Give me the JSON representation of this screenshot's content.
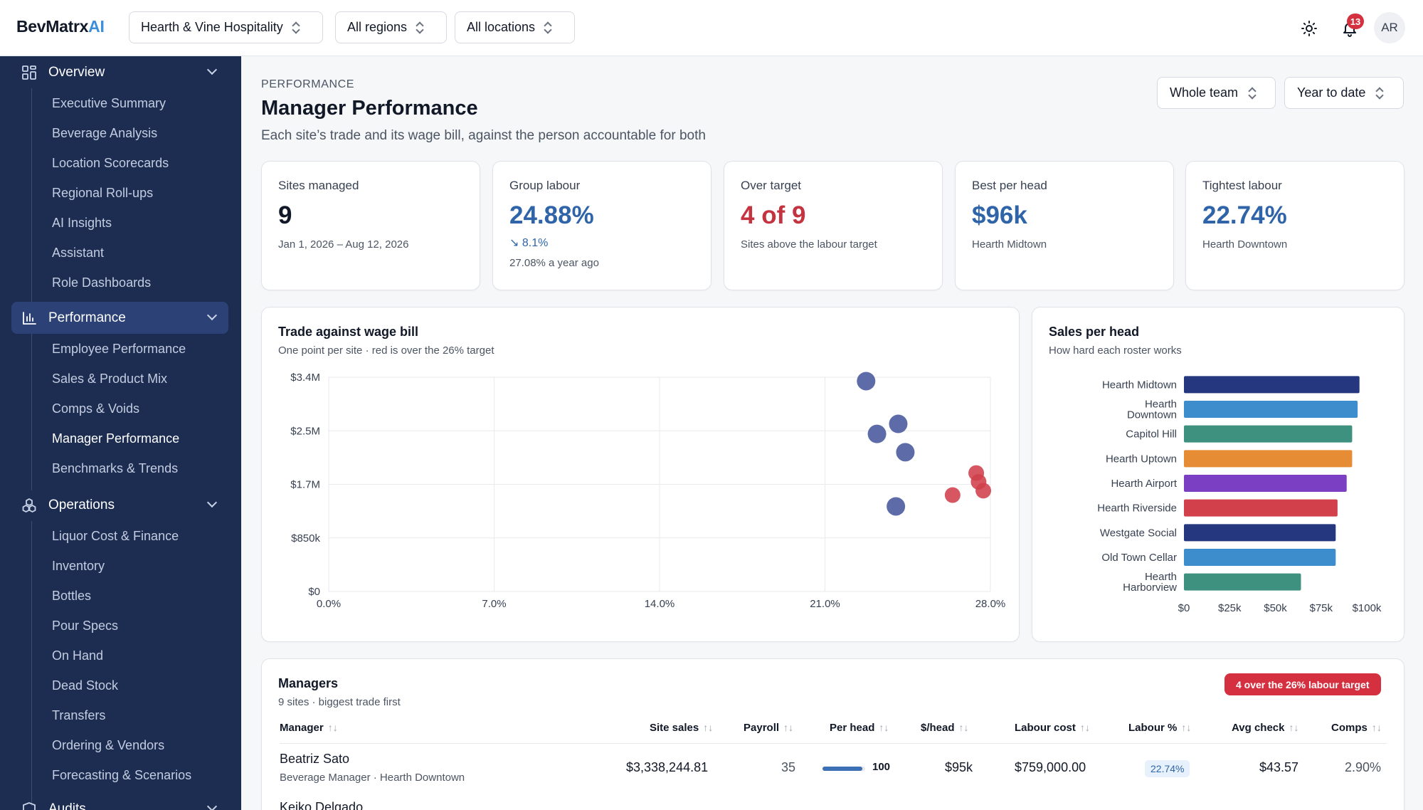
{
  "brand": {
    "main": "BevMatrx",
    "accent": "AI"
  },
  "topbar": {
    "org_select": "Hearth & Vine Hospitality",
    "region_select": "All regions",
    "location_select": "All locations",
    "notifications_count": "13",
    "avatar_initials": "AR"
  },
  "sidebar": {
    "overview": {
      "label": "Overview",
      "items": [
        "Executive Summary",
        "Beverage Analysis",
        "Location Scorecards",
        "Regional Roll-ups",
        "AI Insights",
        "Assistant",
        "Role Dashboards"
      ]
    },
    "performance": {
      "label": "Performance",
      "items": [
        "Employee Performance",
        "Sales & Product Mix",
        "Comps & Voids",
        "Manager Performance",
        "Benchmarks & Trends"
      ]
    },
    "operations": {
      "label": "Operations",
      "items": [
        "Liquor Cost & Finance",
        "Inventory",
        "Bottles",
        "Pour Specs",
        "On Hand",
        "Dead Stock",
        "Transfers",
        "Ordering & Vendors",
        "Forecasting & Scenarios"
      ]
    },
    "audits": {
      "label": "Audits"
    }
  },
  "page": {
    "eyebrow": "PERFORMANCE",
    "title": "Manager Performance",
    "subtitle": "Each site’s trade and its wage bill, against the person accountable for both",
    "team_select": "Whole team",
    "period_select": "Year to date"
  },
  "kpis": [
    {
      "label": "Sites managed",
      "value": "9",
      "foot": "Jan 1, 2026 – Aug 12, 2026"
    },
    {
      "label": "Group labour",
      "value": "24.88%",
      "trend": "8.1%",
      "foot": "27.08% a year ago"
    },
    {
      "label": "Over target",
      "value": "4 of 9",
      "foot": "Sites above the labour target"
    },
    {
      "label": "Best per head",
      "value": "$96k",
      "foot": "Hearth Midtown"
    },
    {
      "label": "Tightest labour",
      "value": "22.74%",
      "foot": "Hearth Downtown"
    }
  ],
  "colors": {
    "blue_value": "#2f64a8",
    "red_value": "#c33340",
    "dot_blue": "#47589c",
    "dot_red": "#d0404c"
  },
  "chart_data": [
    {
      "type": "scatter",
      "title": "Trade against wage bill",
      "subtitle": "One point per site · red is over the 26% target",
      "x_ticks": [
        "0.0%",
        "7.0%",
        "14.0%",
        "21.0%",
        "28.0%"
      ],
      "y_ticks": [
        "$0",
        "$850k",
        "$1.7M",
        "$2.5M",
        "$3.4M"
      ],
      "xlim": [
        0,
        28
      ],
      "ylim": [
        0,
        3400000
      ],
      "target": 26,
      "points": [
        {
          "x": 22.74,
          "y": 3338245
        },
        {
          "x": 24.1,
          "y": 2660000
        },
        {
          "x": 23.2,
          "y": 2500000
        },
        {
          "x": 24.4,
          "y": 2210000
        },
        {
          "x": 24.0,
          "y": 1350000
        },
        {
          "x": 27.4,
          "y": 1880000
        },
        {
          "x": 27.5,
          "y": 1740000
        },
        {
          "x": 26.4,
          "y": 1530000
        },
        {
          "x": 27.7,
          "y": 1600000
        }
      ]
    },
    {
      "type": "bar",
      "orientation": "horizontal",
      "title": "Sales per head",
      "subtitle": "How hard each roster works",
      "categories": [
        [
          "Hearth Midtown"
        ],
        [
          "Hearth",
          "Downtown"
        ],
        [
          "Capitol Hill"
        ],
        [
          "Hearth Uptown"
        ],
        [
          "Hearth Airport"
        ],
        [
          "Hearth Riverside"
        ],
        [
          "Westgate Social"
        ],
        [
          "Old Town Cellar"
        ],
        [
          "Hearth",
          "Harborview"
        ]
      ],
      "values": [
        96000,
        95000,
        92000,
        92000,
        89000,
        84000,
        83000,
        83000,
        64000
      ],
      "colors": [
        "#25387f",
        "#3d8ccb",
        "#3f917f",
        "#e58c35",
        "#7b3fc4",
        "#d2404c",
        "#25387f",
        "#3d8ccb",
        "#3f917f"
      ],
      "x_ticks": [
        "$0",
        "$25k",
        "$50k",
        "$75k",
        "$100k"
      ],
      "xlim": [
        0,
        100000
      ]
    }
  ],
  "managers": {
    "title": "Managers",
    "subtitle": "9 sites · biggest trade first",
    "pill": "4 over the 26% labour target",
    "columns": [
      "Manager",
      "Site sales",
      "Payroll",
      "Per head",
      "$/head",
      "Labour cost",
      "Labour %",
      "Avg check",
      "Comps"
    ],
    "rows": [
      {
        "name": "Beatriz Sato",
        "role": "Beverage Manager · Hearth Downtown",
        "site_sales": "$3,338,244.81",
        "payroll": "35",
        "per_head_score": 100,
        "per_head_label": "100",
        "dollar_head": "$95k",
        "labour_cost": "$759,000.00",
        "labour_pct": "22.74%",
        "avg_check": "$43.57",
        "comps": "2.90%"
      },
      {
        "name": "Keiko Delgado"
      }
    ]
  }
}
